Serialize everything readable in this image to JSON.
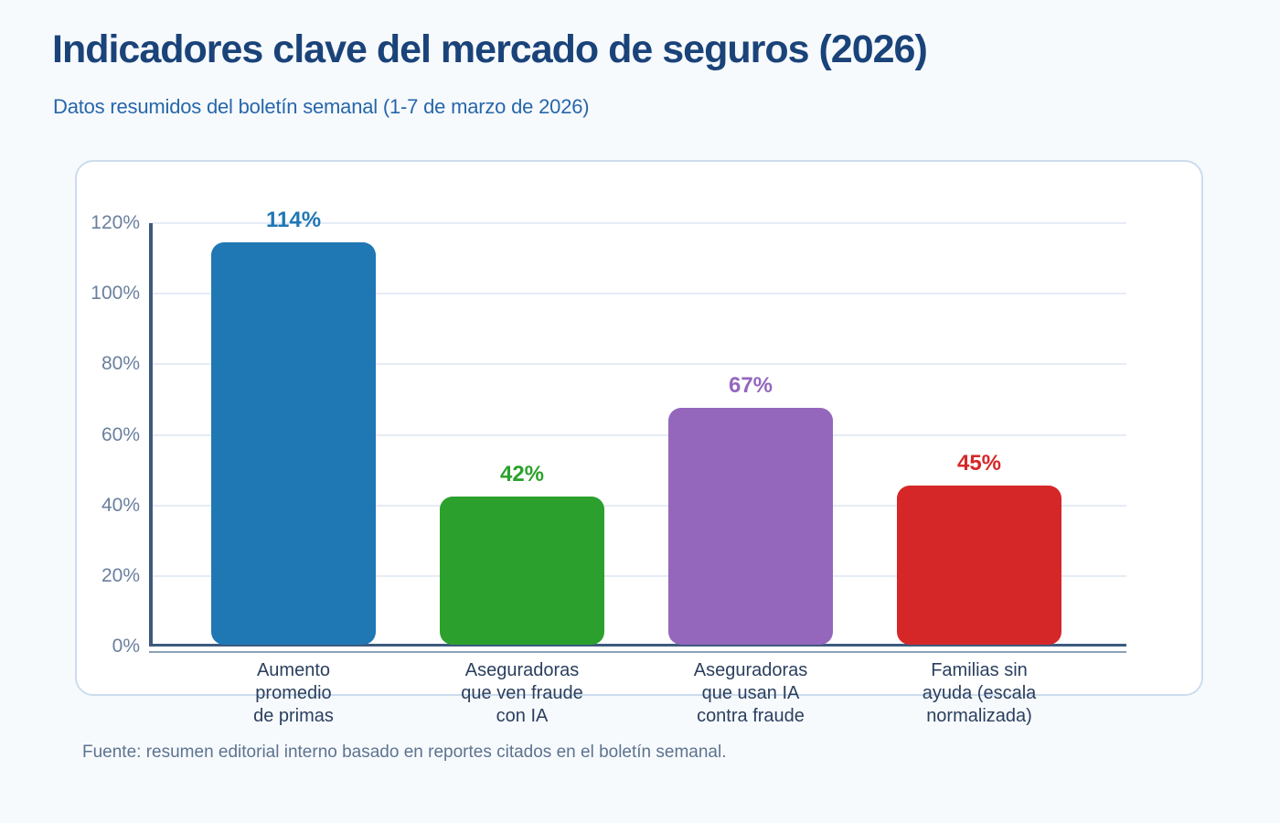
{
  "page": {
    "title": "Indicadores clave del mercado de seguros (2026)",
    "subtitle": "Datos resumidos del boletín semanal (1-7 de marzo de 2026)",
    "source": "Fuente: resumen editorial interno basado en reportes citados en el boletín semanal."
  },
  "colors": {
    "background": "#f7fafd",
    "card_background": "#ffffff",
    "card_border": "#ccdcee",
    "title": "#1a4379",
    "subtitle": "#2666aa",
    "axis_line": "#3d5a7e",
    "axis_secondary_line": "#8ba0b8",
    "gridline": "#e6ecf5",
    "ytick_label": "#6a7f9e",
    "category_label": "#2a3f5e",
    "source_text": "#5d7390"
  },
  "chart_data": {
    "type": "bar",
    "title": "Indicadores clave del mercado de seguros (2026)",
    "subtitle": "Datos resumidos del boletín semanal (1-7 de marzo de 2026)",
    "categories": [
      "Aumento\npromedio\nde primas",
      "Aseguradoras\nque ven fraude\ncon IA",
      "Aseguradoras\nque usan IA\ncontra fraude",
      "Familias sin\nayuda (escala\nnormalizada)"
    ],
    "values": [
      114,
      42,
      67,
      45
    ],
    "value_labels": [
      "114%",
      "42%",
      "67%",
      "45%"
    ],
    "bar_colors": [
      "#1f77b4",
      "#2ca02c",
      "#9467bd",
      "#d62728"
    ],
    "xlabel": "",
    "ylabel": "",
    "ylim": [
      0,
      120
    ],
    "yticks": [
      0,
      20,
      40,
      60,
      80,
      100,
      120
    ],
    "ytick_labels": [
      "0%",
      "20%",
      "40%",
      "60%",
      "80%",
      "100%",
      "120%"
    ],
    "grid": true,
    "legend": false,
    "source": "Fuente: resumen editorial interno basado en reportes citados en el boletín semanal."
  }
}
